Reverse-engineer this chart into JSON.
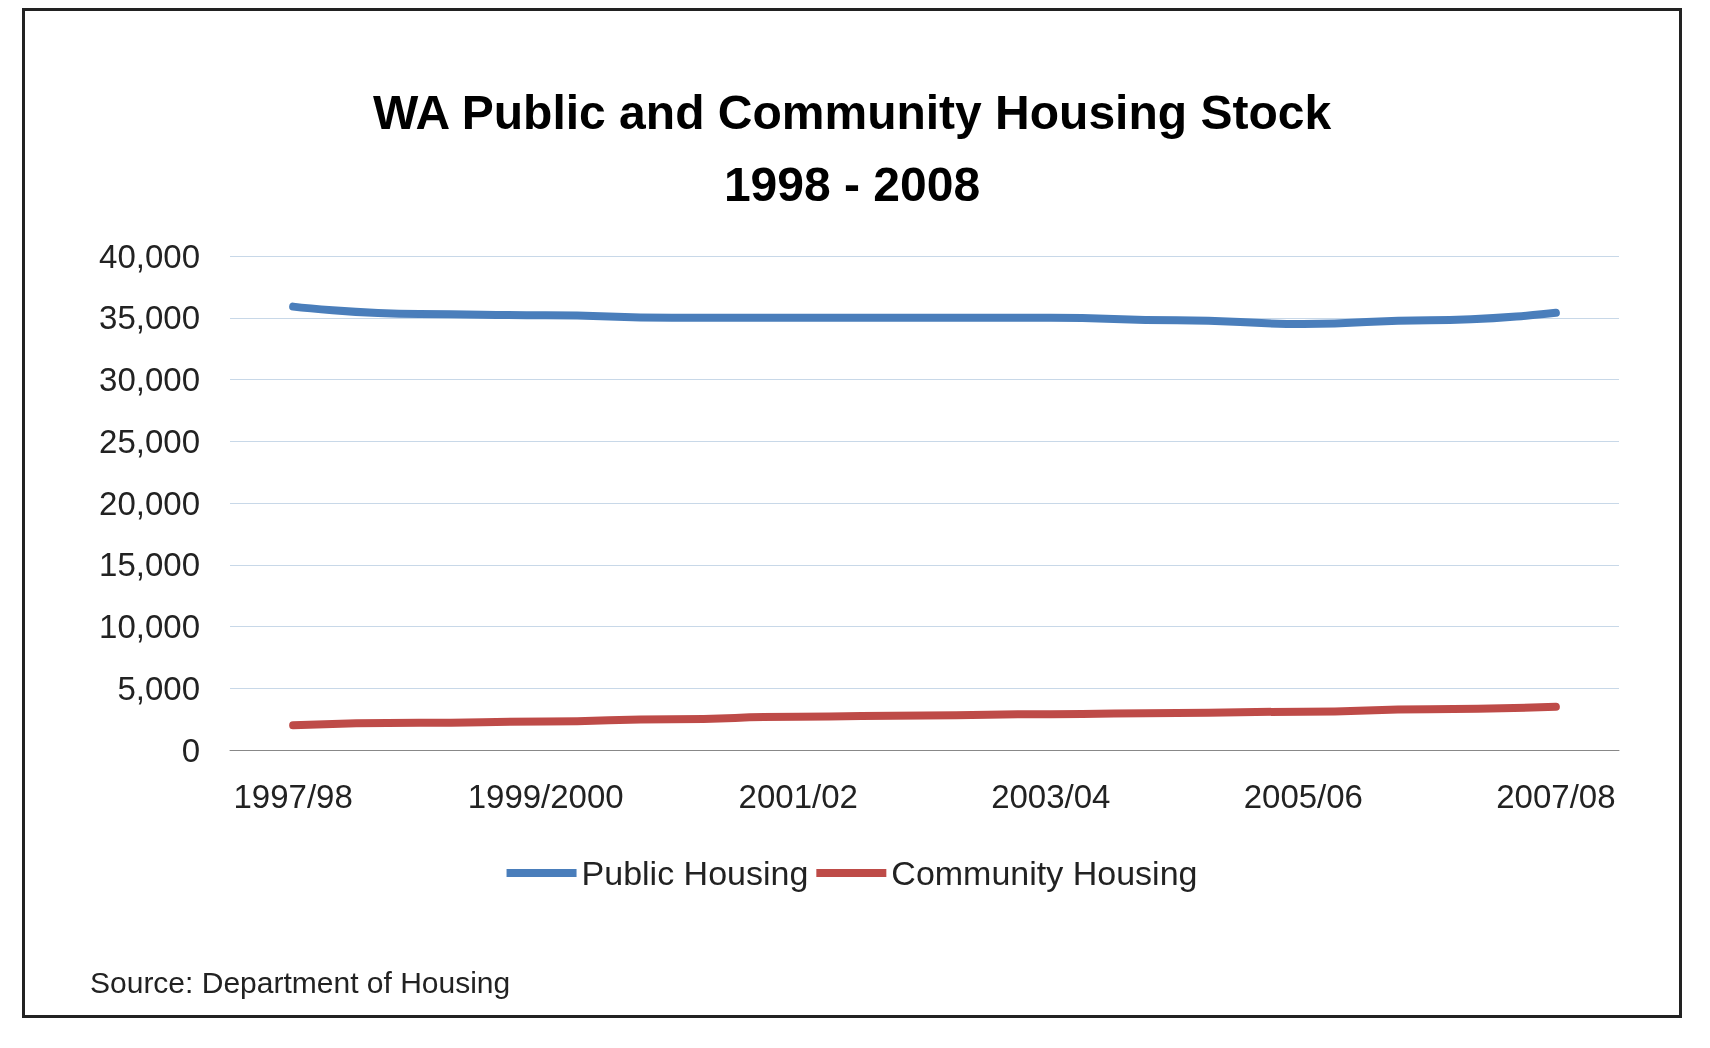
{
  "chart_data": {
    "type": "line",
    "title": "WA Public and Community Housing Stock\n1998 - 2008",
    "categories": [
      "1997/98",
      null,
      "1999/2000",
      null,
      "2001/02",
      null,
      "2003/04",
      null,
      "2005/06",
      null,
      "2007/08"
    ],
    "series": [
      {
        "name": "Public Housing",
        "color": "#4a7ebb",
        "values": [
          35900,
          35300,
          35200,
          35000,
          35000,
          35000,
          35000,
          34800,
          34500,
          34800,
          35400
        ]
      },
      {
        "name": "Community Housing",
        "color": "#be4b48",
        "values": [
          2000,
          2200,
          2300,
          2500,
          2700,
          2800,
          2900,
          3000,
          3100,
          3300,
          3500
        ]
      }
    ],
    "ylim": [
      0,
      40000
    ],
    "yticks": [
      0,
      {
        "value": 5000,
        "label": "5,000"
      },
      {
        "value": 10000,
        "label": "10,000"
      },
      {
        "value": 15000,
        "label": "15,000"
      },
      {
        "value": 20000,
        "label": "20,000"
      },
      {
        "value": 25000,
        "label": "25,000"
      },
      {
        "value": 30000,
        "label": "30,000"
      },
      {
        "value": 35000,
        "label": "35,000"
      },
      {
        "value": 40000,
        "label": "40,000"
      }
    ],
    "grid": "y",
    "legend": "bottom",
    "line_style": "solid",
    "annotations": [
      "Source: Department of Housing"
    ]
  }
}
